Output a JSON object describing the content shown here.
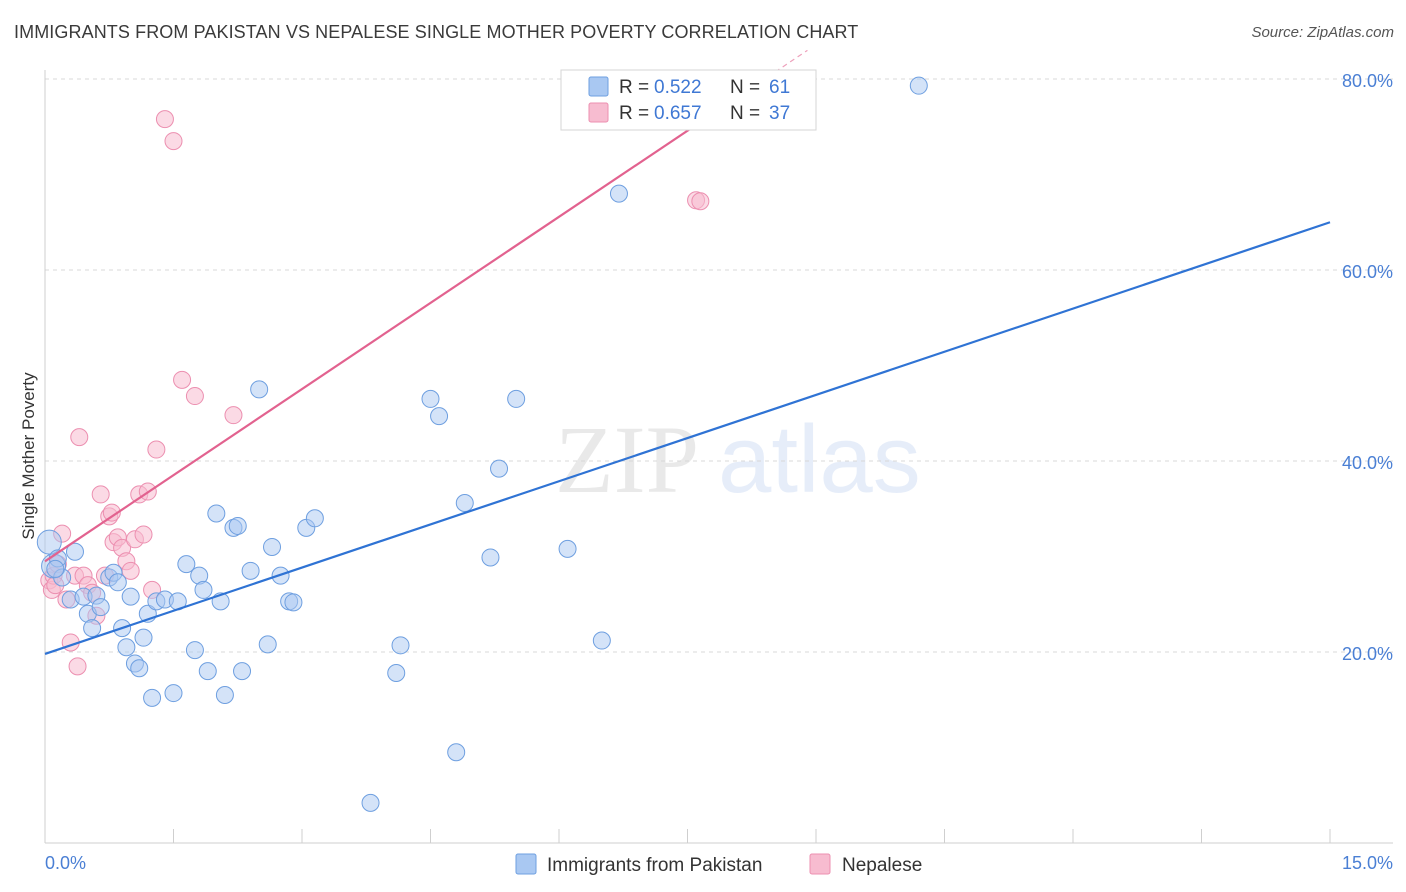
{
  "header": {
    "title": "IMMIGRANTS FROM PAKISTAN VS NEPALESE SINGLE MOTHER POVERTY CORRELATION CHART",
    "source": "Source: ZipAtlas.com"
  },
  "watermark": {
    "zip": "ZIP",
    "atlas": "atlas"
  },
  "colors": {
    "blue_fill": "#a9c8f2",
    "blue_stroke": "#6e9fe0",
    "blue_line": "#2f73d4",
    "pink_fill": "#f7bcd0",
    "pink_stroke": "#ec8fb0",
    "pink_line": "#e2628f",
    "tick_text": "#4a7fd4",
    "grid": "#d8d8d8"
  },
  "legend": {
    "items": [
      {
        "r_label": "R =",
        "r_value": "0.522",
        "n_label": "N =",
        "n_value": "61"
      },
      {
        "r_label": "R =",
        "r_value": "0.657",
        "n_label": "N =",
        "n_value": "37"
      }
    ]
  },
  "bottom_legend": [
    "Immigrants from Pakistan",
    "Nepalese"
  ],
  "chart_data": {
    "type": "scatter",
    "title": "IMMIGRANTS FROM PAKISTAN VS NEPALESE SINGLE MOTHER POVERTY CORRELATION CHART",
    "xlabel": "",
    "ylabel": "Single Mother Poverty",
    "xlim": [
      0,
      15
    ],
    "ylim": [
      0,
      82
    ],
    "x_tick_labels": [
      "0.0%",
      "15.0%"
    ],
    "y_ticks": [
      20,
      40,
      60,
      80
    ],
    "y_tick_labels": [
      "20.0%",
      "40.0%",
      "60.0%",
      "80.0%"
    ],
    "series": [
      {
        "name": "Immigrants from Pakistan",
        "r": 0.522,
        "n": 61,
        "trend": {
          "x": [
            0,
            15
          ],
          "y": [
            19.8,
            65.0
          ]
        },
        "points": [
          [
            0.05,
            31.5
          ],
          [
            0.1,
            29.0
          ],
          [
            0.15,
            29.8
          ],
          [
            0.2,
            27.8
          ],
          [
            0.3,
            25.5
          ],
          [
            0.35,
            30.5
          ],
          [
            0.45,
            25.8
          ],
          [
            0.5,
            24.0
          ],
          [
            0.55,
            22.5
          ],
          [
            0.6,
            25.9
          ],
          [
            0.65,
            24.7
          ],
          [
            0.75,
            27.8
          ],
          [
            0.8,
            28.3
          ],
          [
            0.85,
            27.3
          ],
          [
            0.9,
            22.5
          ],
          [
            0.95,
            20.5
          ],
          [
            1.0,
            25.8
          ],
          [
            1.05,
            18.8
          ],
          [
            1.1,
            18.3
          ],
          [
            1.15,
            21.5
          ],
          [
            1.2,
            24.0
          ],
          [
            1.25,
            15.2
          ],
          [
            1.3,
            25.3
          ],
          [
            1.4,
            25.5
          ],
          [
            1.5,
            15.7
          ],
          [
            1.55,
            25.3
          ],
          [
            1.65,
            29.2
          ],
          [
            1.75,
            20.2
          ],
          [
            1.8,
            28.0
          ],
          [
            1.85,
            26.5
          ],
          [
            1.9,
            18.0
          ],
          [
            2.0,
            34.5
          ],
          [
            2.05,
            25.3
          ],
          [
            2.1,
            15.5
          ],
          [
            2.2,
            33.0
          ],
          [
            2.25,
            33.2
          ],
          [
            2.3,
            18.0
          ],
          [
            2.4,
            28.5
          ],
          [
            2.5,
            47.5
          ],
          [
            2.6,
            20.8
          ],
          [
            2.65,
            31.0
          ],
          [
            2.75,
            28.0
          ],
          [
            2.85,
            25.3
          ],
          [
            2.9,
            25.2
          ],
          [
            3.05,
            33.0
          ],
          [
            3.15,
            34.0
          ],
          [
            3.8,
            4.2
          ],
          [
            4.1,
            17.8
          ],
          [
            4.15,
            20.7
          ],
          [
            4.5,
            46.5
          ],
          [
            4.6,
            44.7
          ],
          [
            4.8,
            9.5
          ],
          [
            4.9,
            35.6
          ],
          [
            5.2,
            29.9
          ],
          [
            5.3,
            39.2
          ],
          [
            5.5,
            46.5
          ],
          [
            6.1,
            30.8
          ],
          [
            6.5,
            21.2
          ],
          [
            6.7,
            68.0
          ],
          [
            10.2,
            79.3
          ],
          [
            0.12,
            28.7
          ]
        ]
      },
      {
        "name": "Nepalese",
        "r": 0.657,
        "n": 37,
        "trend": {
          "x": [
            0,
            8.9
          ],
          "y": [
            29.5,
            83.0
          ],
          "solid_until_x": 8.0
        },
        "points": [
          [
            0.05,
            27.5
          ],
          [
            0.08,
            26.5
          ],
          [
            0.1,
            28.0
          ],
          [
            0.12,
            27.0
          ],
          [
            0.15,
            29.2
          ],
          [
            0.2,
            32.4
          ],
          [
            0.25,
            25.5
          ],
          [
            0.3,
            21.0
          ],
          [
            0.35,
            28.0
          ],
          [
            0.38,
            18.5
          ],
          [
            0.4,
            42.5
          ],
          [
            0.45,
            28.0
          ],
          [
            0.5,
            27.0
          ],
          [
            0.55,
            26.2
          ],
          [
            0.6,
            23.8
          ],
          [
            0.65,
            36.5
          ],
          [
            0.7,
            28.0
          ],
          [
            0.75,
            34.2
          ],
          [
            0.78,
            34.6
          ],
          [
            0.8,
            31.5
          ],
          [
            0.85,
            32.0
          ],
          [
            0.9,
            30.9
          ],
          [
            0.95,
            29.5
          ],
          [
            1.0,
            28.5
          ],
          [
            1.05,
            31.8
          ],
          [
            1.1,
            36.5
          ],
          [
            1.15,
            32.3
          ],
          [
            1.2,
            36.8
          ],
          [
            1.25,
            26.5
          ],
          [
            1.3,
            41.2
          ],
          [
            1.4,
            75.8
          ],
          [
            1.5,
            73.5
          ],
          [
            1.6,
            48.5
          ],
          [
            1.75,
            46.8
          ],
          [
            2.2,
            44.8
          ],
          [
            7.6,
            67.3
          ],
          [
            7.65,
            67.2
          ]
        ]
      }
    ]
  }
}
